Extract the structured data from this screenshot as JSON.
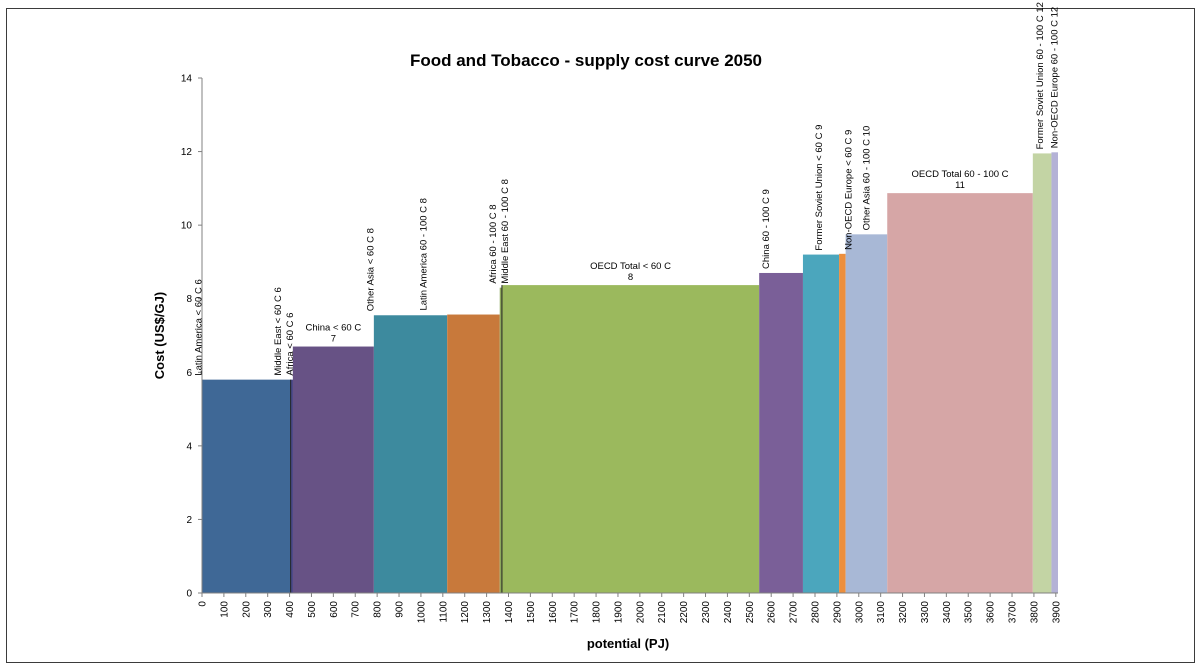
{
  "chart_data": {
    "type": "bar",
    "title": "Food and Tobacco - supply cost curve 2050",
    "xlabel": "potential (PJ)",
    "ylabel": "Cost (US$/GJ)",
    "xlim": [
      0,
      3910
    ],
    "ylim": [
      0,
      14
    ],
    "grid": false,
    "xticks": [
      0,
      100,
      200,
      300,
      400,
      500,
      600,
      700,
      800,
      900,
      1000,
      1100,
      1200,
      1300,
      1400,
      1500,
      1600,
      1700,
      1800,
      1900,
      2000,
      2100,
      2200,
      2300,
      2400,
      2500,
      2600,
      2700,
      2800,
      2900,
      3000,
      3100,
      3200,
      3300,
      3400,
      3500,
      3600,
      3700,
      3800,
      3900
    ],
    "yticks": [
      0,
      2,
      4,
      6,
      8,
      10,
      12,
      14
    ],
    "segments": [
      {
        "name": "Latin America < 60 C",
        "label": "6",
        "x0": 0,
        "x1": 405,
        "value": 5.8,
        "color": "#3f6896",
        "label_style": "vertical-right"
      },
      {
        "name": "Middle East < 60 C",
        "label": "6",
        "x0": 405,
        "x1": 410,
        "value": 5.8,
        "color": "#4a4a8a",
        "label_style": "vertical-right"
      },
      {
        "name": "Africa < 60 C",
        "label": "6",
        "x0": 410,
        "x1": 415,
        "value": 5.8,
        "color": "#4a4a8a",
        "label_style": "vertical-right"
      },
      {
        "name": "China < 60 C",
        "label": "7",
        "x0": 415,
        "x1": 785,
        "value": 6.7,
        "color": "#675285",
        "label_style": "horizontal"
      },
      {
        "name": "Other Asia < 60 C",
        "label": "8",
        "x0": 785,
        "x1": 1120,
        "value": 7.55,
        "color": "#3d8a9e",
        "label_style": "vertical-right"
      },
      {
        "name": "Latin America 60 - 100 C",
        "label": "8",
        "x0": 1120,
        "x1": 1360,
        "value": 7.57,
        "color": "#c8793b",
        "label_style": "vertical-right"
      },
      {
        "name": "Africa 60 - 100 C",
        "label": "8",
        "x0": 1360,
        "x1": 1365,
        "value": 8.3,
        "color": "#8ca85a",
        "label_style": "vertical-right"
      },
      {
        "name": "Middle East 60 - 100 C",
        "label": "8",
        "x0": 1365,
        "x1": 1370,
        "value": 8.3,
        "color": "#8ca85a",
        "label_style": "vertical-right"
      },
      {
        "name": "OECD Total < 60 C",
        "label": "8",
        "x0": 1370,
        "x1": 2545,
        "value": 8.37,
        "color": "#9bb95d",
        "label_style": "horizontal"
      },
      {
        "name": "China 60 - 100 C",
        "label": "9",
        "x0": 2545,
        "x1": 2745,
        "value": 8.7,
        "color": "#7a5f98",
        "label_style": "vertical-right"
      },
      {
        "name": "Former Soviet Union < 60 C",
        "label": "9",
        "x0": 2745,
        "x1": 2910,
        "value": 9.2,
        "color": "#4ba6bd",
        "label_style": "vertical-right"
      },
      {
        "name": "Non-OECD Europe < 60 C",
        "label": "9",
        "x0": 2910,
        "x1": 2940,
        "value": 9.22,
        "color": "#ec8f3e",
        "label_style": "vertical-right"
      },
      {
        "name": "Other Asia 60 - 100 C",
        "label": "10",
        "x0": 2940,
        "x1": 3130,
        "value": 9.75,
        "color": "#a8b8d6",
        "label_style": "vertical-right"
      },
      {
        "name": "OECD Total 60 - 100 C",
        "label": "11",
        "x0": 3130,
        "x1": 3795,
        "value": 10.87,
        "color": "#d6a6a6",
        "label_style": "horizontal"
      },
      {
        "name": "Former Soviet Union 60 - 100 C",
        "label": "12",
        "x0": 3795,
        "x1": 3880,
        "value": 11.95,
        "color": "#c3d4a4",
        "label_style": "vertical-right"
      },
      {
        "name": "Non-OECD Europe 60 - 100 C",
        "label": "12",
        "x0": 3880,
        "x1": 3910,
        "value": 11.98,
        "color": "#b4b2d6",
        "label_style": "vertical-right"
      }
    ]
  }
}
